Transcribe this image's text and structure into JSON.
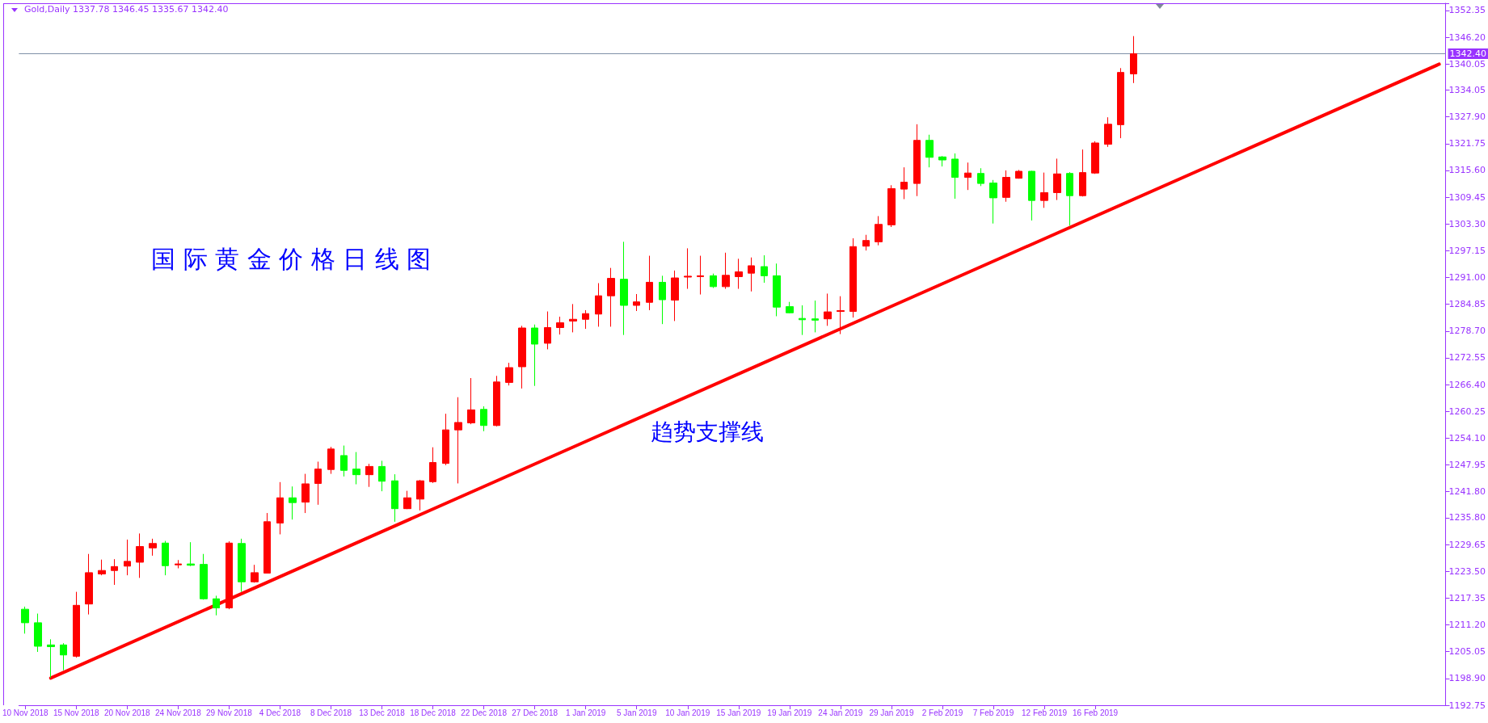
{
  "chart_data": {
    "type": "candlestick",
    "title": "国 际 黄 金 价 格 日 线 图",
    "annotations": [
      "Gold,Daily 1337.78 1346.45 1335.67 1342.40",
      "趋势支撑线"
    ],
    "categories": [
      "10 Nov 2018",
      null,
      null,
      null,
      "15 Nov 2018",
      null,
      null,
      null,
      "20 Nov 2018",
      null,
      null,
      null,
      "24 Nov 2018",
      null,
      null,
      null,
      "29 Nov 2018",
      null,
      null,
      null,
      "4 Dec 2018",
      null,
      null,
      null,
      "8 Dec 2018",
      null,
      null,
      null,
      "13 Dec 2018",
      null,
      null,
      null,
      "18 Dec 2018",
      null,
      null,
      null,
      "22 Dec 2018",
      null,
      null,
      null,
      "27 Dec 2018",
      null,
      null,
      null,
      "1 Jan 2019",
      null,
      null,
      null,
      "5 Jan 2019",
      null,
      null,
      null,
      "10 Jan 2019",
      null,
      null,
      null,
      "15 Jan 2019",
      null,
      null,
      null,
      "19 Jan 2019",
      null,
      null,
      null,
      "24 Jan 2019",
      null,
      null,
      null,
      "29 Jan 2019",
      null,
      null,
      null,
      "2 Feb 2019",
      null,
      null,
      null,
      "7 Feb 2019",
      null,
      null,
      null,
      "12 Feb 2019",
      null,
      null,
      null,
      "16 Feb 2019",
      null,
      null,
      null,
      null,
      null,
      null,
      null,
      null,
      null,
      null,
      null,
      null,
      null,
      null,
      null,
      null,
      null,
      null,
      null,
      null,
      null,
      null,
      null,
      null,
      null,
      null,
      null
    ],
    "series": [
      {
        "type": "candlestick",
        "ohlc": [
          [
            1214.8,
            1215.4,
            1209.2,
            1211.7
          ],
          [
            1211.7,
            1213.8,
            1205.0,
            1206.3
          ],
          [
            1206.6,
            1207.9,
            1199.0,
            1206.2
          ],
          [
            1206.6,
            1207.0,
            1200.8,
            1204.3
          ],
          [
            1204.0,
            1218.8,
            1203.7,
            1215.7
          ],
          [
            1216.0,
            1227.5,
            1213.6,
            1223.2
          ],
          [
            1222.9,
            1226.2,
            1222.6,
            1223.7
          ],
          [
            1223.7,
            1226.3,
            1220.4,
            1224.6
          ],
          [
            1224.7,
            1230.8,
            1222.6,
            1225.8
          ],
          [
            1225.6,
            1232.2,
            1222.0,
            1229.2
          ],
          [
            1228.9,
            1231.0,
            1227.1,
            1229.9
          ],
          [
            1230.0,
            1230.5,
            1222.6,
            1224.8
          ],
          [
            1225.0,
            1226.1,
            1224.2,
            1225.2
          ],
          [
            1225.2,
            1230.2,
            1224.7,
            1224.9
          ],
          [
            1225.1,
            1227.5,
            1217.0,
            1217.2
          ],
          [
            1217.2,
            1217.9,
            1213.4,
            1215.1
          ],
          [
            1215.1,
            1230.4,
            1214.8,
            1230.0
          ],
          [
            1229.9,
            1231.0,
            1218.8,
            1221.1
          ],
          [
            1221.1,
            1225.0,
            1220.9,
            1223.2
          ],
          [
            1223.1,
            1236.9,
            1223.0,
            1234.9
          ],
          [
            1234.6,
            1244.0,
            1232.0,
            1240.4
          ],
          [
            1240.4,
            1243.0,
            1235.4,
            1239.3
          ],
          [
            1239.4,
            1245.9,
            1236.9,
            1243.6
          ],
          [
            1243.7,
            1248.7,
            1238.8,
            1247.0
          ],
          [
            1246.9,
            1252.1,
            1245.9,
            1251.6
          ],
          [
            1250.1,
            1252.4,
            1245.3,
            1246.7
          ],
          [
            1247.0,
            1250.9,
            1243.5,
            1245.7
          ],
          [
            1245.7,
            1248.2,
            1242.9,
            1247.6
          ],
          [
            1247.6,
            1248.9,
            1241.9,
            1244.2
          ],
          [
            1244.3,
            1245.8,
            1234.9,
            1237.9
          ],
          [
            1237.9,
            1242.0,
            1237.8,
            1240.4
          ],
          [
            1240.1,
            1244.5,
            1237.5,
            1244.3
          ],
          [
            1244.1,
            1252.0,
            1243.8,
            1248.5
          ],
          [
            1248.3,
            1259.7,
            1247.9,
            1256.0
          ],
          [
            1256.0,
            1263.5,
            1243.7,
            1257.7
          ],
          [
            1257.6,
            1267.9,
            1257.3,
            1260.6
          ],
          [
            1260.7,
            1261.4,
            1255.7,
            1257.0
          ],
          [
            1257.0,
            1268.4,
            1256.8,
            1267.0
          ],
          [
            1266.9,
            1271.4,
            1266.2,
            1270.3
          ],
          [
            1270.5,
            1279.9,
            1265.5,
            1279.4
          ],
          [
            1279.4,
            1280.2,
            1266.1,
            1275.7
          ],
          [
            1275.9,
            1283.2,
            1274.5,
            1279.5
          ],
          [
            1279.5,
            1282.0,
            1277.9,
            1280.6
          ],
          [
            1281.0,
            1284.9,
            1278.4,
            1281.4
          ],
          [
            1281.4,
            1283.5,
            1279.2,
            1282.7
          ],
          [
            1282.6,
            1289.7,
            1279.7,
            1286.8
          ],
          [
            1286.8,
            1293.2,
            1279.7,
            1290.8
          ],
          [
            1290.6,
            1299.2,
            1277.8,
            1284.6
          ],
          [
            1284.6,
            1287.2,
            1283.3,
            1285.4
          ],
          [
            1285.3,
            1296.0,
            1283.5,
            1289.9
          ],
          [
            1289.9,
            1291.4,
            1280.3,
            1285.9
          ],
          [
            1285.8,
            1292.6,
            1281.0,
            1290.9
          ],
          [
            1291.1,
            1297.7,
            1288.4,
            1291.3
          ],
          [
            1291.2,
            1296.0,
            1287.1,
            1291.4
          ],
          [
            1291.4,
            1291.9,
            1288.6,
            1288.9
          ],
          [
            1288.9,
            1296.7,
            1288.4,
            1291.5
          ],
          [
            1291.2,
            1295.3,
            1288.4,
            1292.3
          ],
          [
            1292.0,
            1295.6,
            1287.8,
            1293.7
          ],
          [
            1293.5,
            1296.1,
            1289.8,
            1291.4
          ],
          [
            1291.4,
            1294.2,
            1282.1,
            1284.2
          ],
          [
            1284.3,
            1285.4,
            1282.8,
            1282.9
          ],
          [
            1281.6,
            1284.6,
            1277.8,
            1281.3
          ],
          [
            1281.5,
            1285.7,
            1278.4,
            1281.2
          ],
          [
            1281.5,
            1287.3,
            1279.9,
            1283.1
          ],
          [
            1283.2,
            1286.7,
            1278.0,
            1283.4
          ],
          [
            1283.2,
            1300.0,
            1281.8,
            1298.1
          ],
          [
            1298.2,
            1300.8,
            1297.2,
            1299.5
          ],
          [
            1299.2,
            1305.1,
            1298.4,
            1303.2
          ],
          [
            1303.1,
            1312.2,
            1302.6,
            1311.4
          ],
          [
            1311.3,
            1316.3,
            1309.0,
            1312.9
          ],
          [
            1312.6,
            1326.2,
            1309.7,
            1322.5
          ],
          [
            1322.5,
            1323.8,
            1316.3,
            1318.6
          ],
          [
            1318.7,
            1318.9,
            1316.5,
            1318.0
          ],
          [
            1318.2,
            1319.5,
            1309.1,
            1314.0
          ],
          [
            1314.0,
            1317.4,
            1311.1,
            1315.0
          ],
          [
            1314.9,
            1316.1,
            1312.0,
            1312.6
          ],
          [
            1312.7,
            1313.4,
            1303.4,
            1309.3
          ],
          [
            1309.4,
            1315.6,
            1308.4,
            1314.0
          ],
          [
            1313.8,
            1315.7,
            1313.7,
            1315.4
          ],
          [
            1315.4,
            1315.5,
            1304.1,
            1308.7
          ],
          [
            1308.7,
            1315.1,
            1307.0,
            1310.5
          ],
          [
            1310.5,
            1318.3,
            1308.8,
            1314.8
          ],
          [
            1314.9,
            1315.2,
            1302.9,
            1309.8
          ],
          [
            1309.8,
            1320.4,
            1309.6,
            1315.1
          ],
          [
            1315.0,
            1322.3,
            1314.8,
            1321.9
          ],
          [
            1321.6,
            1327.8,
            1321.0,
            1326.2
          ],
          [
            1326.1,
            1339.1,
            1323.0,
            1338.1
          ],
          [
            1337.78,
            1346.45,
            1335.67,
            1342.4
          ],
          null,
          null,
          null,
          null,
          null,
          null,
          null,
          null,
          null,
          null,
          null,
          null,
          null,
          null,
          null,
          null,
          null,
          null,
          null,
          null,
          null,
          null,
          null,
          null
        ],
        "colors": [
          "#00ff00",
          "#00ff00",
          "#00ff00",
          "#00ff00",
          "#ff0000",
          "#ff0000",
          "#ff0000",
          "#ff0000",
          "#ff0000",
          "#ff0000",
          "#ff0000",
          "#00ff00",
          "#ff0000",
          "#00ff00",
          "#00ff00",
          "#00ff00",
          "#ff0000",
          "#00ff00",
          "#ff0000",
          "#ff0000",
          "#ff0000",
          "#00ff00",
          "#ff0000",
          "#ff0000",
          "#ff0000",
          "#00ff00",
          "#00ff00",
          "#ff0000",
          "#00ff00",
          "#00ff00",
          "#ff0000",
          "#ff0000",
          "#ff0000",
          "#ff0000",
          "#ff0000",
          "#ff0000",
          "#00ff00",
          "#ff0000",
          "#ff0000",
          "#ff0000",
          "#00ff00",
          "#ff0000",
          "#ff0000",
          "#ff0000",
          "#ff0000",
          "#ff0000",
          "#ff0000",
          "#00ff00",
          "#ff0000",
          "#ff0000",
          "#00ff00",
          "#ff0000",
          "#ff0000",
          "#ff0000",
          "#00ff00",
          "#ff0000",
          "#ff0000",
          "#ff0000",
          "#00ff00",
          "#00ff00",
          "#00ff00",
          "#00ff00",
          "#00ff00",
          "#ff0000",
          "#ff0000",
          "#ff0000",
          "#ff0000",
          "#ff0000",
          "#ff0000",
          "#ff0000",
          "#ff0000",
          "#00ff00",
          "#00ff00",
          "#00ff00",
          "#ff0000",
          "#00ff00",
          "#00ff00",
          "#ff0000",
          "#ff0000",
          "#00ff00",
          "#ff0000",
          "#ff0000",
          "#00ff00",
          "#ff0000",
          "#ff0000",
          "#ff0000",
          "#ff0000",
          "#ff0000",
          null,
          null,
          null,
          null,
          null,
          null,
          null,
          null,
          null,
          null,
          null,
          null,
          null,
          null,
          null,
          null,
          null,
          null,
          null,
          null,
          null,
          null,
          null,
          null
        ]
      },
      {
        "type": "line",
        "color": "#ff0000",
        "values": [
          null,
          null,
          1199.0,
          null,
          null,
          null,
          null,
          null,
          null,
          null,
          null,
          null,
          null,
          null,
          null,
          null,
          null,
          null,
          null,
          null,
          null,
          null,
          null,
          null,
          null,
          null,
          null,
          null,
          null,
          null,
          null,
          null,
          null,
          null,
          null,
          null,
          null,
          null,
          null,
          null,
          null,
          null,
          null,
          null,
          null,
          null,
          null,
          null,
          null,
          null,
          null,
          null,
          null,
          null,
          null,
          null,
          null,
          null,
          null,
          null,
          null,
          null,
          null,
          null,
          null,
          null,
          null,
          null,
          null,
          null,
          null,
          null,
          null,
          null,
          null,
          null,
          null,
          null,
          null,
          null,
          null,
          null,
          null,
          null,
          null,
          null,
          null,
          null,
          null,
          null,
          null,
          null,
          null,
          null,
          null,
          null,
          null,
          null,
          null,
          null,
          null,
          null,
          null,
          null,
          null,
          null,
          null,
          null,
          null,
          null,
          null,
          1340.0
        ]
      }
    ],
    "ylim": [
      1192.75,
      1354.0
    ],
    "yticks": [
      {
        "value": 1192.75,
        "label": "1192.75"
      },
      {
        "value": 1198.9,
        "label": "1198.90"
      },
      {
        "value": 1205.05,
        "label": "1205.05"
      },
      {
        "value": 1211.2,
        "label": "1211.20"
      },
      {
        "value": 1217.35,
        "label": "1217.35"
      },
      {
        "value": 1223.5,
        "label": "1223.50"
      },
      {
        "value": 1229.65,
        "label": "1229.65"
      },
      {
        "value": 1235.8,
        "label": "1235.80"
      },
      {
        "value": 1241.8,
        "label": "1241.80"
      },
      {
        "value": 1247.95,
        "label": "1247.95"
      },
      {
        "value": 1254.1,
        "label": "1254.10"
      },
      {
        "value": 1260.25,
        "label": "1260.25"
      },
      {
        "value": 1266.4,
        "label": "1266.40"
      },
      {
        "value": 1272.55,
        "label": "1272.55"
      },
      {
        "value": 1278.7,
        "label": "1278.70"
      },
      {
        "value": 1284.85,
        "label": "1284.85"
      },
      {
        "value": 1291.0,
        "label": "1291.00"
      },
      {
        "value": 1297.15,
        "label": "1297.15"
      },
      {
        "value": 1303.3,
        "label": "1303.30"
      },
      {
        "value": 1309.45,
        "label": "1309.45"
      },
      {
        "value": 1315.6,
        "label": "1315.60"
      },
      {
        "value": 1321.75,
        "label": "1321.75"
      },
      {
        "value": 1327.9,
        "label": "1327.90"
      },
      {
        "value": 1334.05,
        "label": "1334.05"
      },
      {
        "value": 1340.05,
        "label": "1340.05"
      },
      {
        "value": 1346.2,
        "label": "1346.20"
      },
      {
        "value": 1352.35,
        "label": "1352.35"
      }
    ],
    "ref_lines": [
      {
        "axis": "y",
        "value": 1342.4,
        "label": "1342.40",
        "color": "#8090a8"
      }
    ]
  }
}
